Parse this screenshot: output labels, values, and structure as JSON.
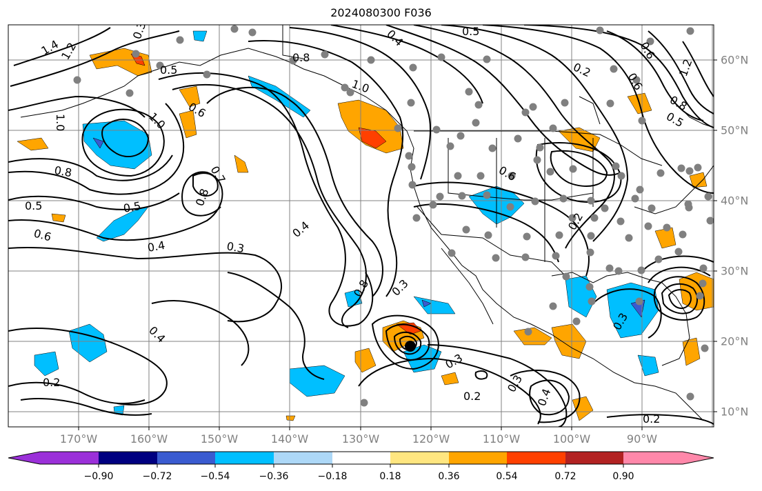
{
  "title": "2024080300 F036",
  "longitude_labels": [
    "170°W",
    "160°W",
    "150°W",
    "140°W",
    "130°W",
    "120°W",
    "110°W",
    "100°W",
    "90°W"
  ],
  "latitude_labels": [
    "60°N",
    "50°N",
    "40°N",
    "30°N",
    "20°N",
    "10°N"
  ],
  "colorbar": {
    "tick_labels": [
      "−0.90",
      "−0.72",
      "−0.54",
      "−0.36",
      "−0.18",
      "0.18",
      "0.36",
      "0.54",
      "0.72",
      "0.90"
    ],
    "under_color": "#9b30d9",
    "over_color": "#ff88aa",
    "band_colors": [
      "#000080",
      "#3a5bd0",
      "#00bfff",
      "#add8f7",
      "#ffffff",
      "#ffe680",
      "#ffa500",
      "#ff4000",
      "#b22222"
    ]
  },
  "contour_labels": [
    "1.4",
    "1.2",
    "0.3",
    "0.5",
    "0.8",
    "1.0",
    "0.5",
    "0.4",
    "0.6",
    "0.2",
    "0.6",
    "1.2",
    "0.8",
    "0.5",
    "1.0",
    "0.6",
    "1.0",
    "0.8",
    "0.5",
    "0.6",
    "0.7",
    "0.8",
    "0.5",
    "0.4",
    "0.4",
    "0.3",
    "0.8",
    "0.3",
    "0.6",
    "0.2",
    "0.3",
    "0.4",
    "0.2",
    "0.3",
    "0.2",
    "0.3",
    "0.4",
    "0.2"
  ],
  "station_color": "#808080"
}
